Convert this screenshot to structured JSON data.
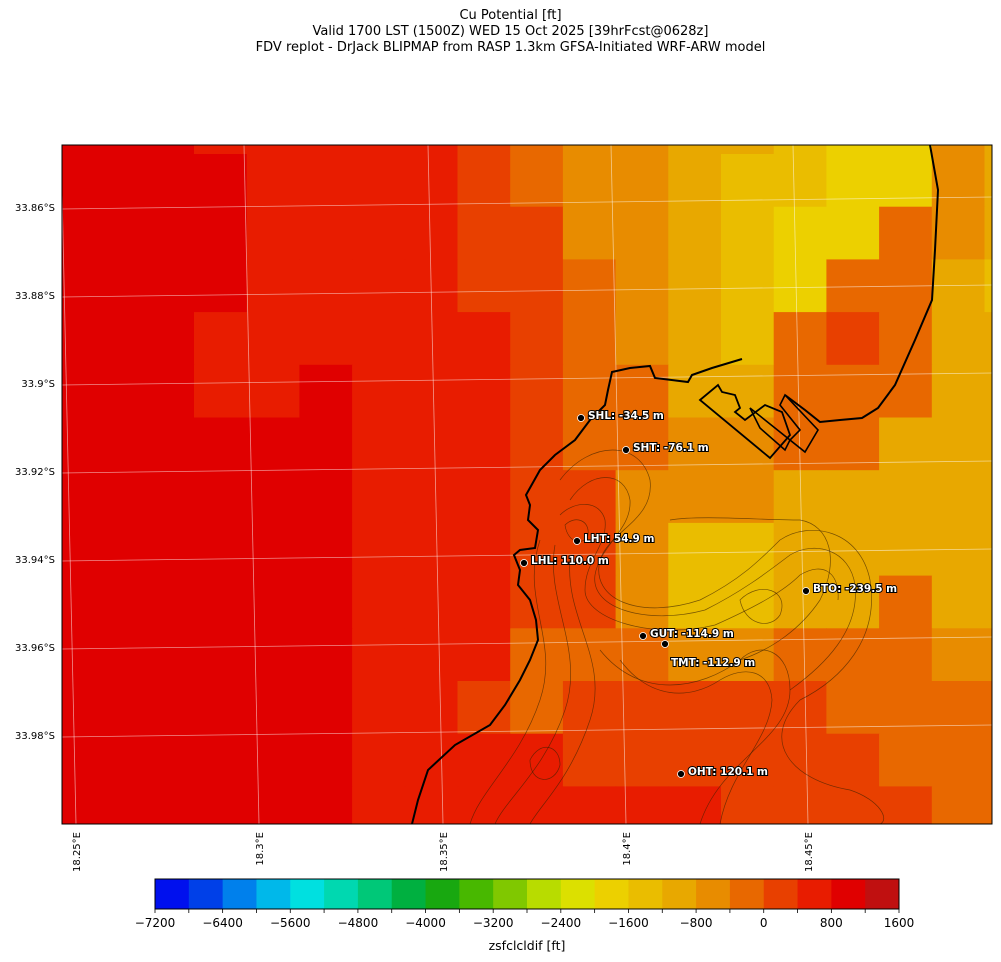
{
  "title": {
    "line1": "Cu Potential [ft]",
    "line2": "Valid 1700 LST (1500Z) WED 15 Oct 2025 [39hrFcst@0628z]",
    "line3": "FDV replot - DrJack BLIPMAP from RASP 1.3km GFSA-Initiated WRF-ARW model"
  },
  "chart_data": {
    "type": "heatmap",
    "variable": "zsfclcldif",
    "units": "ft",
    "lat_labels": [
      "33.86°S",
      "33.88°S",
      "33.9°S",
      "33.92°S",
      "33.94°S",
      "33.96°S",
      "33.98°S"
    ],
    "lon_labels": [
      "18.25°E",
      "18.3°E",
      "18.35°E",
      "18.4°E",
      "18.45°E"
    ],
    "levels": [
      -7200,
      -6800,
      -6400,
      -6000,
      -5600,
      -5200,
      -4800,
      -4400,
      -4000,
      -3600,
      -3200,
      -2800,
      -2400,
      -2000,
      -1600,
      -1200,
      -800,
      -400,
      0,
      400,
      800,
      1200,
      1600
    ],
    "level_colors": [
      "#0010ee",
      "#0040e8",
      "#0080ec",
      "#00b8ea",
      "#00e0e0",
      "#00d8b0",
      "#00c878",
      "#00b040",
      "#18a810",
      "#48b800",
      "#80c800",
      "#b8dc00",
      "#dce000",
      "#ecd000",
      "#eabd00",
      "#e8a800",
      "#e88c00",
      "#e86800",
      "#e84000",
      "#e81c00",
      "#e00000",
      "#c01010"
    ],
    "bin_key": {
      "A": 20,
      "B": 19,
      "C": 18,
      "E": 17,
      "F": 16,
      "G": 15,
      "H": 14,
      "I": 13
    },
    "field_bins": [
      "AAABBBBBCEFFGGHIIFG",
      "AAAABBBBCEFFGHHIIFG",
      "AAAABBBBCCFFGHIIEFG",
      "AAAABBBBCCEFGHIEEGH",
      "AAABBBBBBCEFGHECEGG",
      "AAABBABBBCEEGGEEEGG",
      "AAAAAABBBCEEFFEEGGG",
      "AAAAAABBBCCFFFGGGGG",
      "AAAAAABBBCCFHHGGGGG",
      "AAAAAABBBCCFHHGGEGG",
      "AAAAAABBBEEEFFEEEFF",
      "AAAAAABBCECCCCCEEEE",
      "AAAAAABBBBCCCCCCEEE",
      "AAAAAABBBBBBBCCCCEE"
    ],
    "stations": [
      {
        "code": "SHL",
        "label": "SHL: -34.5 m"
      },
      {
        "code": "SHT",
        "label": "SHT: -76.1 m"
      },
      {
        "code": "LHT",
        "label": "LHT: 54.9 m"
      },
      {
        "code": "LHL",
        "label": "LHL: 110.0 m"
      },
      {
        "code": "BTO",
        "label": "BTO: -239.5 m"
      },
      {
        "code": "GUT",
        "label": "GUT: -114.9 m"
      },
      {
        "code": "TMT",
        "label": "TMT: -112.9 m"
      },
      {
        "code": "OHT",
        "label": "OHT: 120.1 m"
      }
    ],
    "colorbar": {
      "tick_labels": [
        "−7200",
        "−6400",
        "−5600",
        "−4800",
        "−4000",
        "−3200",
        "−2400",
        "−1600",
        "−800",
        "0",
        "800",
        "1600"
      ],
      "label": "zsfclcldif [ft]"
    }
  }
}
